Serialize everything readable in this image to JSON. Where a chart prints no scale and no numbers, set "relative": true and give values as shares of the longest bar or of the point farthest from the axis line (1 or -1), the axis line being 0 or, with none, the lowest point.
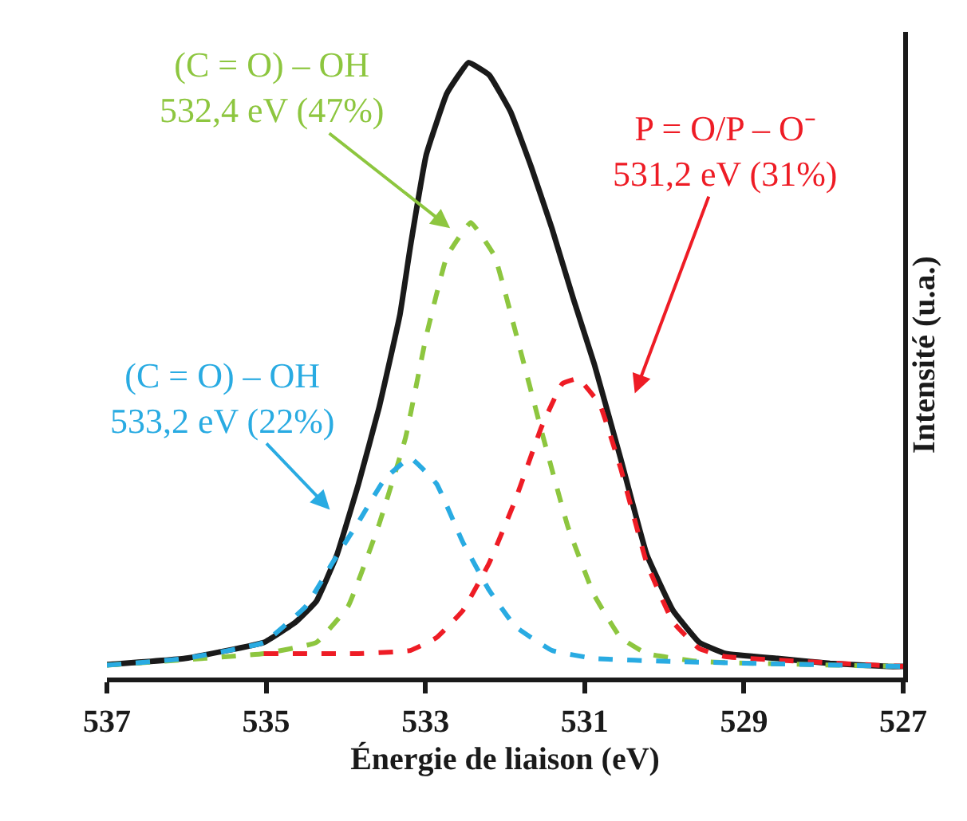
{
  "chart_data": {
    "type": "line",
    "xlabel": "Énergie de liaison (eV)",
    "ylabel": "Intensité (u.a.)",
    "relative": true,
    "xlim": [
      537,
      527
    ],
    "xticks": [
      537,
      535,
      533,
      531,
      529,
      527
    ],
    "grid": false,
    "tick_labels": "x",
    "marker": "none",
    "series": [
      {
        "color": "#1a1a1a",
        "line_style": "solid",
        "x": [
          537,
          536.02,
          535.03,
          534.63,
          534.37,
          534.11,
          533.84,
          533.58,
          533.32,
          533.19,
          532.99,
          532.73,
          532.46,
          532.2,
          531.93,
          531.67,
          531.41,
          531.14,
          530.88,
          530.55,
          530.22,
          529.89,
          529.56,
          529.23,
          528.58,
          527.92,
          527.19,
          527
        ],
        "values": [
          0.021,
          0.031,
          0.057,
          0.09,
          0.124,
          0.2,
          0.315,
          0.44,
          0.59,
          0.7,
          0.85,
          0.95,
          1,
          0.98,
          0.92,
          0.83,
          0.73,
          0.615,
          0.51,
          0.357,
          0.2,
          0.109,
          0.057,
          0.039,
          0.031,
          0.023,
          0.018,
          0.018
        ]
      },
      {
        "color": "#8dc63f",
        "line_style": "dashed",
        "x": [
          537,
          535.03,
          534.37,
          533.97,
          533.58,
          533.25,
          532.99,
          532.73,
          532.43,
          532.13,
          531.87,
          531.54,
          531.21,
          530.88,
          530.55,
          530.22,
          529.56,
          527
        ],
        "values": [
          0.02,
          0.039,
          0.057,
          0.116,
          0.25,
          0.39,
          0.555,
          0.685,
          0.74,
          0.685,
          0.563,
          0.4,
          0.245,
          0.134,
          0.065,
          0.039,
          0.026,
          0.018
        ]
      },
      {
        "color": "#ee1c25",
        "line_style": "dashed",
        "x": [
          535.03,
          533.84,
          533.19,
          532.86,
          532.53,
          532.2,
          531.87,
          531.54,
          531.28,
          531.08,
          530.81,
          530.55,
          530.22,
          529.89,
          529.56,
          529.23,
          527
        ],
        "values": [
          0.039,
          0.039,
          0.044,
          0.065,
          0.109,
          0.186,
          0.289,
          0.408,
          0.478,
          0.486,
          0.444,
          0.341,
          0.186,
          0.09,
          0.047,
          0.034,
          0.018
        ]
      },
      {
        "color": "#29abe2",
        "line_style": "dashed",
        "x": [
          537,
          536.02,
          535.03,
          534.5,
          534.17,
          533.84,
          533.51,
          533.19,
          532.86,
          532.53,
          532.2,
          531.87,
          531.41,
          530.88,
          529.89,
          527
        ],
        "values": [
          0.02,
          0.031,
          0.057,
          0.116,
          0.186,
          0.253,
          0.323,
          0.357,
          0.315,
          0.22,
          0.142,
          0.083,
          0.044,
          0.031,
          0.026,
          0.018
        ]
      }
    ],
    "annotations": [
      "(C = O) – OH\n532,4 eV (47%)",
      "P = O/P – O⁻\n531,2 eV (31%)",
      "(C = O) – OH\n533,2 eV (22%)"
    ]
  }
}
